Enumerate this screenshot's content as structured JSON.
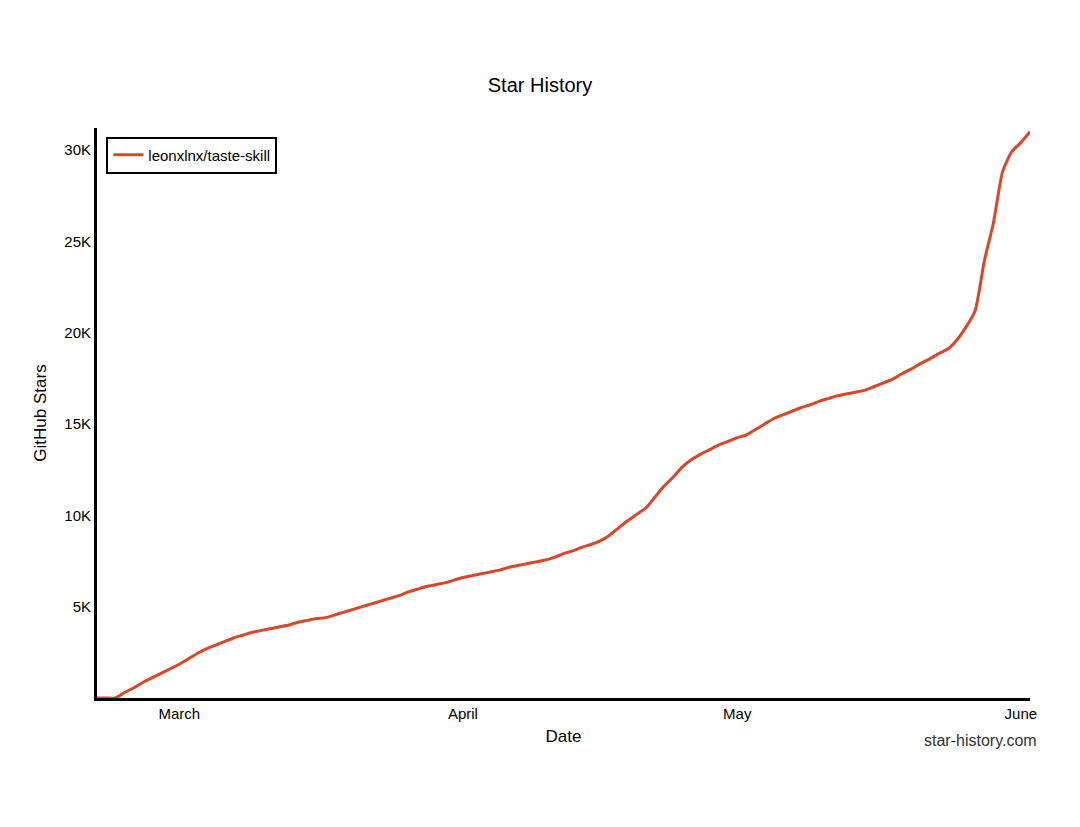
{
  "chart_data": {
    "type": "line",
    "title": "Star History",
    "x_label": "Date",
    "y_label": "GitHub Stars",
    "categories": [
      null,
      null,
      null,
      null,
      null,
      null,
      null,
      null,
      null,
      "March",
      null,
      null,
      null,
      null,
      null,
      null,
      null,
      null,
      null,
      null,
      null,
      null,
      null,
      null,
      null,
      null,
      null,
      null,
      null,
      null,
      null,
      null,
      null,
      null,
      null,
      null,
      null,
      null,
      null,
      null,
      "April",
      null,
      null,
      null,
      null,
      null,
      null,
      null,
      null,
      null,
      null,
      null,
      null,
      null,
      null,
      null,
      null,
      null,
      null,
      null,
      null,
      null,
      null,
      null,
      null,
      null,
      null,
      null,
      null,
      null,
      "May",
      null,
      null,
      null,
      null,
      null,
      null,
      null,
      null,
      null,
      null,
      null,
      null,
      null,
      null,
      null,
      null,
      null,
      null,
      null,
      null,
      null,
      null,
      null,
      null,
      null,
      null,
      null,
      null,
      null,
      null,
      "June",
      null
    ],
    "series": [
      {
        "name": "leonxlnx/taste-skill",
        "color": "#dd4528",
        "values": [
          0,
          0,
          0,
          300,
          550,
          850,
          1100,
          1350,
          1600,
          1850,
          2150,
          2450,
          2700,
          2900,
          3100,
          3300,
          3450,
          3600,
          3700,
          3800,
          3900,
          4000,
          4150,
          4250,
          4350,
          4400,
          4550,
          4700,
          4850,
          5000,
          5150,
          5300,
          5450,
          5600,
          5800,
          5950,
          6100,
          6200,
          6300,
          6450,
          6600,
          6700,
          6800,
          6900,
          7000,
          7150,
          7250,
          7350,
          7450,
          7550,
          7700,
          7900,
          8050,
          8250,
          8400,
          8600,
          8900,
          9300,
          9700,
          10050,
          10400,
          11000,
          11600,
          12100,
          12650,
          13050,
          13350,
          13600,
          13850,
          14050,
          14250,
          14400,
          14700,
          15000,
          15300,
          15500,
          15700,
          15900,
          16050,
          16250,
          16400,
          16550,
          16650,
          16750,
          16850,
          17050,
          17250,
          17450,
          17750,
          18000,
          18300,
          18550,
          18850,
          19100,
          19600,
          20300,
          21200,
          23900,
          26000,
          28800,
          29900,
          30400,
          31000
        ]
      }
    ],
    "ylim": [
      0,
      31200
    ],
    "yticks": [
      {
        "value": 5000,
        "label": "5K"
      },
      {
        "value": 10000,
        "label": "10K"
      },
      {
        "value": 15000,
        "label": "15K"
      },
      {
        "value": 20000,
        "label": "20K"
      },
      {
        "value": 25000,
        "label": "25K"
      },
      {
        "value": 30000,
        "label": "30K"
      }
    ],
    "grid": false,
    "legend": "upper left",
    "annotations": [
      {
        "text": "star-history.com"
      }
    ]
  }
}
